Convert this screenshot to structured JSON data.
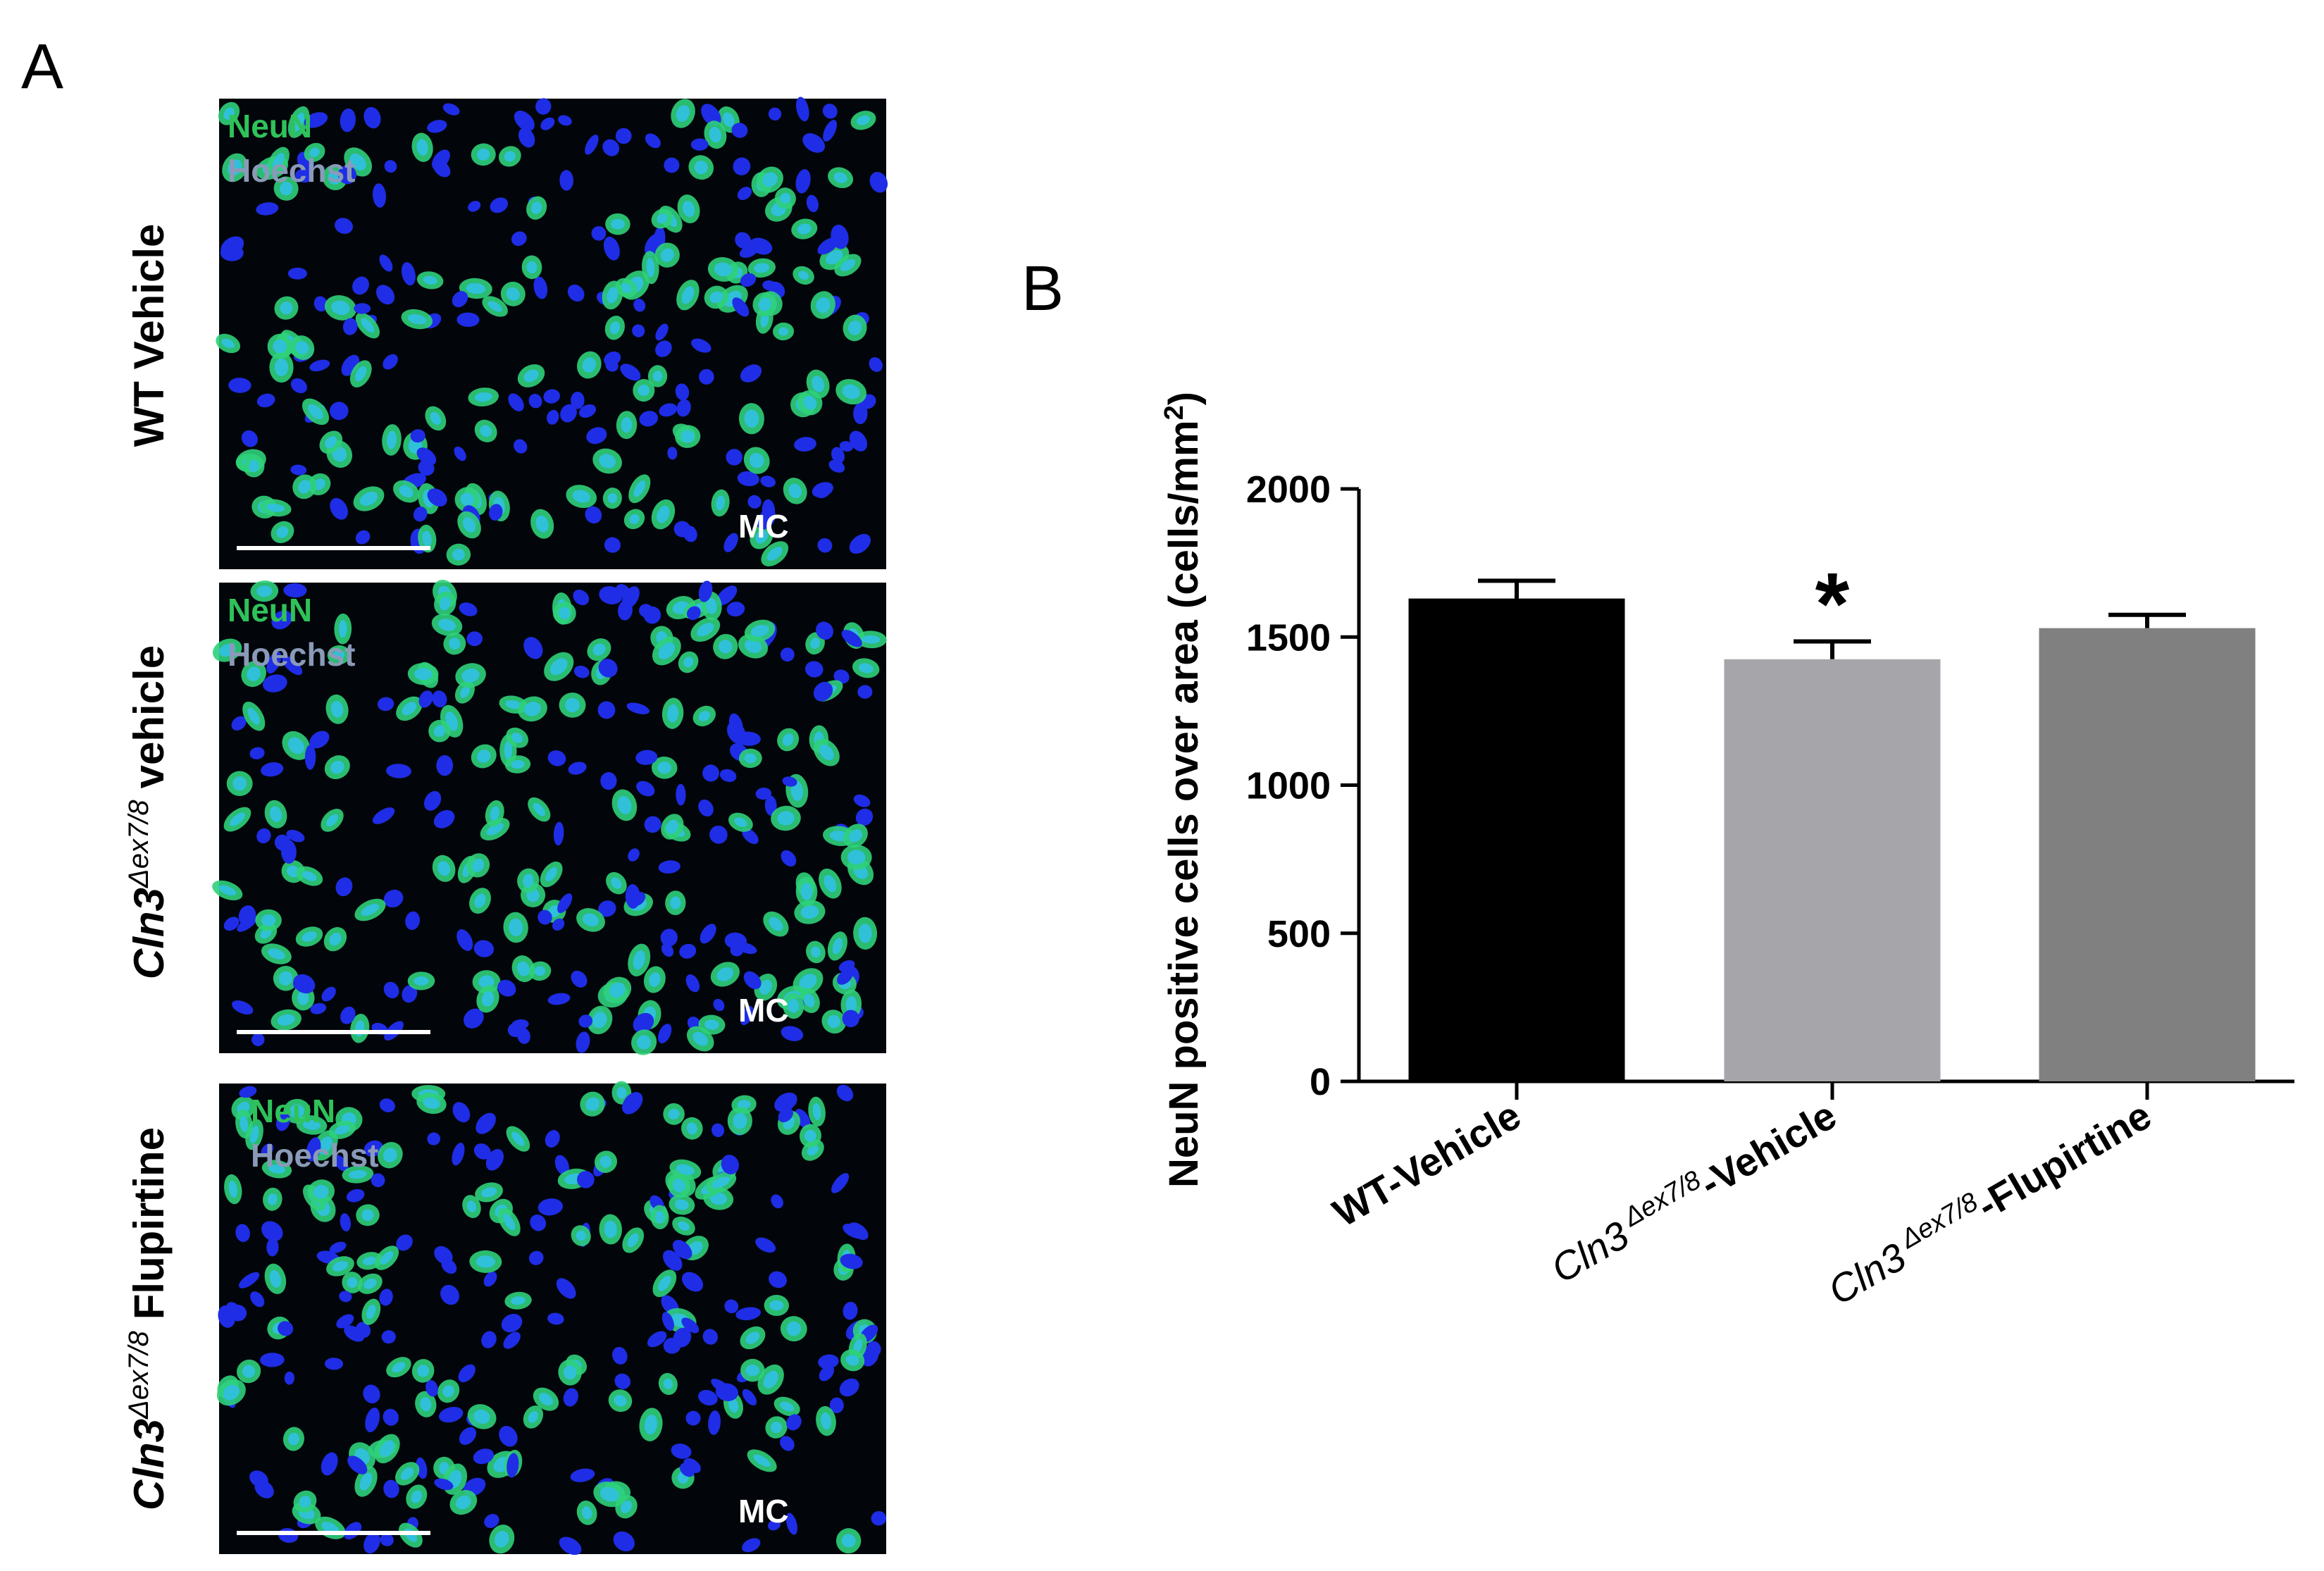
{
  "panel_a": {
    "label": "A",
    "rows": [
      {
        "label": [
          "WT Vehicle"
        ],
        "channels": [
          "NeuN",
          "Hoechst"
        ],
        "region": "MC"
      },
      {
        "label": [
          "Cln3",
          "Δex7/8",
          "vehicle"
        ],
        "channels": [
          "NeuN",
          "Hoechst"
        ],
        "region": "MC"
      },
      {
        "label": [
          "Cln3",
          "Δex7/8",
          "Flupirtine"
        ],
        "channels": [
          "NeuN",
          "Hoechst"
        ],
        "region": "MC"
      }
    ]
  },
  "chart_data": {
    "type": "bar",
    "panel_label": "B",
    "y_label": [
      "NeuN positive cells over area (cells/mm",
      "2",
      ")"
    ],
    "categories": [
      [
        "WT-Vehicle"
      ],
      [
        "Cln3",
        "Δex7/8",
        "-Vehicle"
      ],
      [
        "Cln3",
        "Δex7/8",
        "-Flupirtine"
      ]
    ],
    "values": [
      1630,
      1425,
      1530
    ],
    "errors": [
      60,
      60,
      45
    ],
    "colors": [
      "#000000",
      "#a6a5aa",
      "#808080"
    ],
    "annotations": [
      null,
      "*",
      null
    ],
    "ylim": [
      0,
      2000
    ],
    "yticks": [
      0,
      500,
      1000,
      1500,
      2000
    ]
  }
}
